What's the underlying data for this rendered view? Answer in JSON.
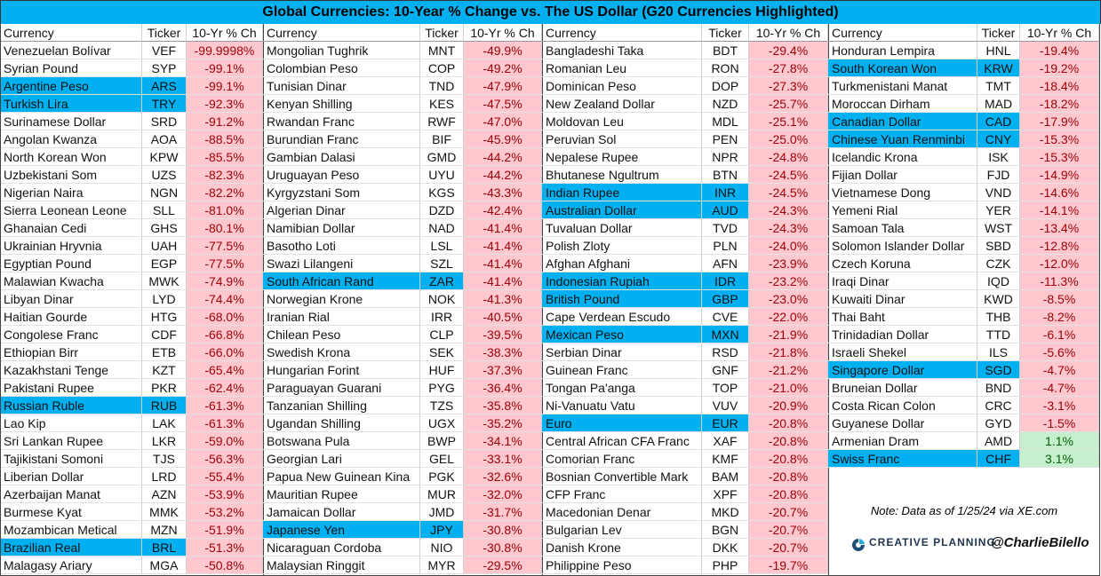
{
  "header": {
    "title": "Global Currencies: 10-Year % Change vs. The US Dollar (G20 Currencies Highlighted)"
  },
  "table": {
    "columns": [
      "Currency",
      "Ticker",
      "10-Yr % Ch"
    ],
    "highlight_color": "#00b0f0",
    "groups": [
      [
        {
          "cells": [
            "Venezuelan Bolívar",
            "VEF",
            "-99.9998%"
          ]
        },
        {
          "cells": [
            "Syrian Pound",
            "SYP",
            "-99.1%"
          ]
        },
        {
          "cells": [
            "Argentine Peso",
            "ARS",
            "-99.1%"
          ],
          "g20": true
        },
        {
          "cells": [
            "Turkish Lira",
            "TRY",
            "-92.3%"
          ],
          "g20": true
        },
        {
          "cells": [
            "Surinamese Dollar",
            "SRD",
            "-91.2%"
          ]
        },
        {
          "cells": [
            "Angolan Kwanza",
            "AOA",
            "-88.5%"
          ]
        },
        {
          "cells": [
            "North Korean Won",
            "KPW",
            "-85.5%"
          ]
        },
        {
          "cells": [
            "Uzbekistani Som",
            "UZS",
            "-82.3%"
          ]
        },
        {
          "cells": [
            "Nigerian Naira",
            "NGN",
            "-82.2%"
          ]
        },
        {
          "cells": [
            "Sierra Leonean Leone",
            "SLL",
            "-81.0%"
          ]
        },
        {
          "cells": [
            "Ghanaian Cedi",
            "GHS",
            "-80.1%"
          ]
        },
        {
          "cells": [
            "Ukrainian Hryvnia",
            "UAH",
            "-77.5%"
          ]
        },
        {
          "cells": [
            "Egyptian Pound",
            "EGP",
            "-77.5%"
          ]
        },
        {
          "cells": [
            "Malawian Kwacha",
            "MWK",
            "-74.9%"
          ]
        },
        {
          "cells": [
            "Libyan Dinar",
            "LYD",
            "-74.4%"
          ]
        },
        {
          "cells": [
            "Haitian Gourde",
            "HTG",
            "-68.0%"
          ]
        },
        {
          "cells": [
            "Congolese Franc",
            "CDF",
            "-66.8%"
          ]
        },
        {
          "cells": [
            "Ethiopian Birr",
            "ETB",
            "-66.0%"
          ]
        },
        {
          "cells": [
            "Kazakhstani Tenge",
            "KZT",
            "-65.4%"
          ]
        },
        {
          "cells": [
            "Pakistani Rupee",
            "PKR",
            "-62.4%"
          ]
        },
        {
          "cells": [
            "Russian Ruble",
            "RUB",
            "-61.3%"
          ],
          "g20": true
        },
        {
          "cells": [
            "Lao Kip",
            "LAK",
            "-61.3%"
          ]
        },
        {
          "cells": [
            "Sri Lankan Rupee",
            "LKR",
            "-59.0%"
          ]
        },
        {
          "cells": [
            "Tajikistani Somoni",
            "TJS",
            "-56.3%"
          ]
        },
        {
          "cells": [
            "Liberian Dollar",
            "LRD",
            "-55.4%"
          ]
        },
        {
          "cells": [
            "Azerbaijan Manat",
            "AZN",
            "-53.9%"
          ]
        },
        {
          "cells": [
            "Burmese Kyat",
            "MMK",
            "-53.2%"
          ]
        },
        {
          "cells": [
            "Mozambican Metical",
            "MZN",
            "-51.9%"
          ]
        },
        {
          "cells": [
            "Brazilian Real",
            "BRL",
            "-51.3%"
          ],
          "g20": true
        },
        {
          "cells": [
            "Malagasy Ariary",
            "MGA",
            "-50.8%"
          ]
        }
      ],
      [
        {
          "cells": [
            "Mongolian Tughrik",
            "MNT",
            "-49.9%"
          ]
        },
        {
          "cells": [
            "Colombian Peso",
            "COP",
            "-49.2%"
          ]
        },
        {
          "cells": [
            "Tunisian Dinar",
            "TND",
            "-47.9%"
          ]
        },
        {
          "cells": [
            "Kenyan Shilling",
            "KES",
            "-47.5%"
          ]
        },
        {
          "cells": [
            "Rwandan Franc",
            "RWF",
            "-47.0%"
          ]
        },
        {
          "cells": [
            "Burundian Franc",
            "BIF",
            "-45.9%"
          ]
        },
        {
          "cells": [
            "Gambian Dalasi",
            "GMD",
            "-44.2%"
          ]
        },
        {
          "cells": [
            "Uruguayan Peso",
            "UYU",
            "-44.2%"
          ]
        },
        {
          "cells": [
            "Kyrgyzstani Som",
            "KGS",
            "-43.3%"
          ]
        },
        {
          "cells": [
            "Algerian Dinar",
            "DZD",
            "-42.4%"
          ]
        },
        {
          "cells": [
            "Namibian Dollar",
            "NAD",
            "-41.4%"
          ]
        },
        {
          "cells": [
            "Basotho Loti",
            "LSL",
            "-41.4%"
          ]
        },
        {
          "cells": [
            "Swazi Lilangeni",
            "SZL",
            "-41.4%"
          ]
        },
        {
          "cells": [
            "South African Rand",
            "ZAR",
            "-41.4%"
          ],
          "g20": true
        },
        {
          "cells": [
            "Norwegian Krone",
            "NOK",
            "-41.3%"
          ]
        },
        {
          "cells": [
            "Iranian Rial",
            "IRR",
            "-40.5%"
          ]
        },
        {
          "cells": [
            "Chilean Peso",
            "CLP",
            "-39.5%"
          ]
        },
        {
          "cells": [
            "Swedish Krona",
            "SEK",
            "-38.3%"
          ]
        },
        {
          "cells": [
            "Hungarian Forint",
            "HUF",
            "-37.3%"
          ]
        },
        {
          "cells": [
            "Paraguayan Guarani",
            "PYG",
            "-36.4%"
          ]
        },
        {
          "cells": [
            "Tanzanian Shilling",
            "TZS",
            "-35.8%"
          ]
        },
        {
          "cells": [
            "Ugandan Shilling",
            "UGX",
            "-35.2%"
          ]
        },
        {
          "cells": [
            "Botswana Pula",
            "BWP",
            "-34.1%"
          ]
        },
        {
          "cells": [
            "Georgian Lari",
            "GEL",
            "-33.1%"
          ]
        },
        {
          "cells": [
            "Papua New Guinean Kina",
            "PGK",
            "-32.6%"
          ]
        },
        {
          "cells": [
            "Mauritian Rupee",
            "MUR",
            "-32.0%"
          ]
        },
        {
          "cells": [
            "Jamaican Dollar",
            "JMD",
            "-31.7%"
          ]
        },
        {
          "cells": [
            "Japanese Yen",
            "JPY",
            "-30.8%"
          ],
          "g20": true
        },
        {
          "cells": [
            "Nicaraguan Cordoba",
            "NIO",
            "-30.8%"
          ]
        },
        {
          "cells": [
            "Malaysian Ringgit",
            "MYR",
            "-29.5%"
          ]
        }
      ],
      [
        {
          "cells": [
            "Bangladeshi Taka",
            "BDT",
            "-29.4%"
          ]
        },
        {
          "cells": [
            "Romanian Leu",
            "RON",
            "-27.8%"
          ]
        },
        {
          "cells": [
            "Dominican Peso",
            "DOP",
            "-27.3%"
          ]
        },
        {
          "cells": [
            "New Zealand Dollar",
            "NZD",
            "-25.7%"
          ]
        },
        {
          "cells": [
            "Moldovan Leu",
            "MDL",
            "-25.1%"
          ]
        },
        {
          "cells": [
            "Peruvian Sol",
            "PEN",
            "-25.0%"
          ]
        },
        {
          "cells": [
            "Nepalese Rupee",
            "NPR",
            "-24.8%"
          ]
        },
        {
          "cells": [
            "Bhutanese Ngultrum",
            "BTN",
            "-24.5%"
          ]
        },
        {
          "cells": [
            "Indian Rupee",
            "INR",
            "-24.5%"
          ],
          "g20": true
        },
        {
          "cells": [
            "Australian Dollar",
            "AUD",
            "-24.3%"
          ],
          "g20": true
        },
        {
          "cells": [
            "Tuvaluan Dollar",
            "TVD",
            "-24.3%"
          ]
        },
        {
          "cells": [
            "Polish Zloty",
            "PLN",
            "-24.0%"
          ]
        },
        {
          "cells": [
            "Afghan Afghani",
            "AFN",
            "-23.9%"
          ]
        },
        {
          "cells": [
            "Indonesian Rupiah",
            "IDR",
            "-23.2%"
          ],
          "g20": true
        },
        {
          "cells": [
            "British Pound",
            "GBP",
            "-23.0%"
          ],
          "g20": true
        },
        {
          "cells": [
            "Cape Verdean Escudo",
            "CVE",
            "-22.0%"
          ]
        },
        {
          "cells": [
            "Mexican Peso",
            "MXN",
            "-21.9%"
          ],
          "g20": true
        },
        {
          "cells": [
            "Serbian Dinar",
            "RSD",
            "-21.8%"
          ]
        },
        {
          "cells": [
            "Guinean Franc",
            "GNF",
            "-21.2%"
          ]
        },
        {
          "cells": [
            "Tongan Pa'anga",
            "TOP",
            "-21.0%"
          ]
        },
        {
          "cells": [
            "Ni-Vanuatu Vatu",
            "VUV",
            "-20.9%"
          ]
        },
        {
          "cells": [
            "Euro",
            "EUR",
            "-20.8%"
          ],
          "g20": true
        },
        {
          "cells": [
            "Central African CFA Franc",
            "XAF",
            "-20.8%"
          ]
        },
        {
          "cells": [
            "Comorian Franc",
            "KMF",
            "-20.8%"
          ]
        },
        {
          "cells": [
            "Bosnian Convertible Mark",
            "BAM",
            "-20.8%"
          ]
        },
        {
          "cells": [
            "CFP Franc",
            "XPF",
            "-20.8%"
          ]
        },
        {
          "cells": [
            "Macedonian Denar",
            "MKD",
            "-20.7%"
          ]
        },
        {
          "cells": [
            "Bulgarian Lev",
            "BGN",
            "-20.7%"
          ]
        },
        {
          "cells": [
            "Danish Krone",
            "DKK",
            "-20.7%"
          ]
        },
        {
          "cells": [
            "Philippine Peso",
            "PHP",
            "-19.7%"
          ]
        }
      ],
      [
        {
          "cells": [
            "Honduran Lempira",
            "HNL",
            "-19.4%"
          ]
        },
        {
          "cells": [
            "South Korean Won",
            "KRW",
            "-19.2%"
          ],
          "g20": true
        },
        {
          "cells": [
            "Turkmenistani Manat",
            "TMT",
            "-18.4%"
          ]
        },
        {
          "cells": [
            "Moroccan Dirham",
            "MAD",
            "-18.2%"
          ]
        },
        {
          "cells": [
            "Canadian Dollar",
            "CAD",
            "-17.9%"
          ],
          "g20": true
        },
        {
          "cells": [
            "Chinese Yuan Renminbi",
            "CNY",
            "-15.3%"
          ],
          "g20": true
        },
        {
          "cells": [
            "Icelandic Krona",
            "ISK",
            "-15.3%"
          ]
        },
        {
          "cells": [
            "Fijian Dollar",
            "FJD",
            "-14.9%"
          ]
        },
        {
          "cells": [
            "Vietnamese Dong",
            "VND",
            "-14.6%"
          ]
        },
        {
          "cells": [
            "Yemeni Rial",
            "YER",
            "-14.1%"
          ]
        },
        {
          "cells": [
            "Samoan Tala",
            "WST",
            "-13.4%"
          ]
        },
        {
          "cells": [
            "Solomon Islander Dollar",
            "SBD",
            "-12.8%"
          ]
        },
        {
          "cells": [
            "Czech Koruna",
            "CZK",
            "-12.0%"
          ]
        },
        {
          "cells": [
            "Iraqi Dinar",
            "IQD",
            "-11.3%"
          ]
        },
        {
          "cells": [
            "Kuwaiti Dinar",
            "KWD",
            "-8.5%"
          ]
        },
        {
          "cells": [
            "Thai Baht",
            "THB",
            "-8.2%"
          ]
        },
        {
          "cells": [
            "Trinidadian Dollar",
            "TTD",
            "-6.1%"
          ]
        },
        {
          "cells": [
            "Israeli Shekel",
            "ILS",
            "-5.6%"
          ]
        },
        {
          "cells": [
            "Singapore Dollar",
            "SGD",
            "-4.7%"
          ],
          "g20": true
        },
        {
          "cells": [
            "Bruneian Dollar",
            "BND",
            "-4.7%"
          ]
        },
        {
          "cells": [
            "Costa Rican Colon",
            "CRC",
            "-3.1%"
          ]
        },
        {
          "cells": [
            "Guyanese Dollar",
            "GYD",
            "-1.5%"
          ]
        },
        {
          "cells": [
            "Armenian Dram",
            "AMD",
            "1.1%"
          ]
        },
        {
          "cells": [
            "Swiss Franc",
            "CHF",
            "3.1%"
          ],
          "g20": true
        }
      ]
    ]
  },
  "footer": {
    "note": "Note: Data as of 1/25/24 via XE.com",
    "logo": "CREATIVE PLANNING",
    "handle": "@CharlieBilello"
  }
}
